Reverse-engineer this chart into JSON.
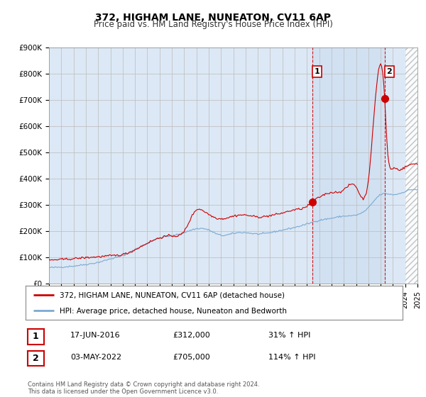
{
  "title": "372, HIGHAM LANE, NUNEATON, CV11 6AP",
  "subtitle": "Price paid vs. HM Land Registry's House Price Index (HPI)",
  "ylim": [
    0,
    900000
  ],
  "yticks": [
    0,
    100000,
    200000,
    300000,
    400000,
    500000,
    600000,
    700000,
    800000,
    900000
  ],
  "ytick_labels": [
    "£0",
    "£100K",
    "£200K",
    "£300K",
    "£400K",
    "£500K",
    "£600K",
    "£700K",
    "£800K",
    "£900K"
  ],
  "x_start_year": 1995,
  "x_end_year": 2025,
  "sale1_year": 2016.46,
  "sale1_price": 312000,
  "sale1_label": "1",
  "sale2_year": 2022.33,
  "sale2_price": 705000,
  "sale2_label": "2",
  "line_color_price": "#cc0000",
  "line_color_hpi": "#7aaad4",
  "vline_color": "#cc0000",
  "background_color": "#ffffff",
  "plot_bg_color": "#dce8f5",
  "grid_color": "#bbbbbb",
  "hatched_bg_color": "#cccccc",
  "legend_label_price": "372, HIGHAM LANE, NUNEATON, CV11 6AP (detached house)",
  "legend_label_hpi": "HPI: Average price, detached house, Nuneaton and Bedworth",
  "annotation1_num": "1",
  "annotation1_date": "17-JUN-2016",
  "annotation1_price": "£312,000",
  "annotation1_pct": "31% ↑ HPI",
  "annotation2_num": "2",
  "annotation2_date": "03-MAY-2022",
  "annotation2_price": "£705,000",
  "annotation2_pct": "114% ↑ HPI",
  "footer": "Contains HM Land Registry data © Crown copyright and database right 2024.\nThis data is licensed under the Open Government Licence v3.0.",
  "title_fontsize": 10,
  "subtitle_fontsize": 8.5,
  "tick_fontsize": 7.5,
  "legend_fontsize": 7.5,
  "annotation_fontsize": 8,
  "footer_fontsize": 6
}
